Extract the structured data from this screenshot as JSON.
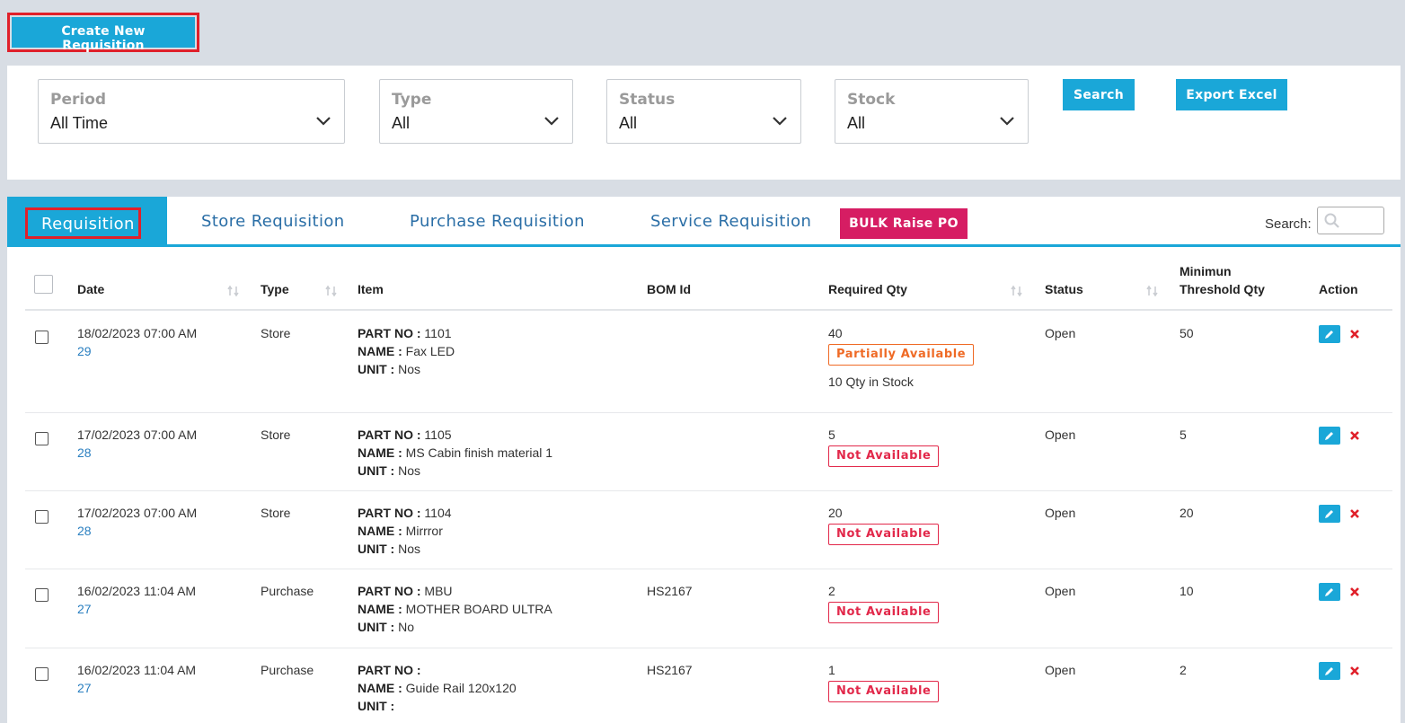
{
  "toolbar": {
    "create_label": "Create New Requisition"
  },
  "filters": [
    {
      "label": "Period",
      "value": "All Time"
    },
    {
      "label": "Type",
      "value": "All"
    },
    {
      "label": "Status",
      "value": "All"
    },
    {
      "label": "Stock",
      "value": "All"
    }
  ],
  "buttons": {
    "search": "Search",
    "export": "Export Excel",
    "bulk": "BULK Raise PO"
  },
  "tabs": {
    "active": "Requisition",
    "store": "Store Requisition",
    "purchase": "Purchase Requisition",
    "service": "Service Requisition"
  },
  "search": {
    "label": "Search:"
  },
  "columns": {
    "date": "Date",
    "type": "Type",
    "item": "Item",
    "bom": "BOM Id",
    "qty": "Required Qty",
    "status": "Status",
    "threshold_1": "Minimun",
    "threshold_2": "Threshold Qty",
    "action": "Action"
  },
  "labels": {
    "part": "PART NO :",
    "name": "NAME :",
    "unit": "UNIT :"
  },
  "rows": [
    {
      "date": "18/02/2023 07:00 AM",
      "id": "29",
      "type": "Store",
      "part": "1101",
      "name": "Fax LED",
      "unit": "Nos",
      "bom": "",
      "qty": "40",
      "badge": "Partially Available",
      "stock_note": "10 Qty in Stock",
      "status": "Open",
      "threshold": "50"
    },
    {
      "date": "17/02/2023 07:00 AM",
      "id": "28",
      "type": "Store",
      "part": "1105",
      "name": "MS Cabin finish material 1",
      "unit": "Nos",
      "bom": "",
      "qty": "5",
      "badge": "Not Available",
      "stock_note": "",
      "status": "Open",
      "threshold": "5"
    },
    {
      "date": "17/02/2023 07:00 AM",
      "id": "28",
      "type": "Store",
      "part": "1104",
      "name": "Mirrror",
      "unit": "Nos",
      "bom": "",
      "qty": "20",
      "badge": "Not Available",
      "stock_note": "",
      "status": "Open",
      "threshold": "20"
    },
    {
      "date": "16/02/2023 11:04 AM",
      "id": "27",
      "type": "Purchase",
      "part": "MBU",
      "name": "MOTHER BOARD ULTRA",
      "unit": "No",
      "bom": "HS2167",
      "qty": "2",
      "badge": "Not Available",
      "stock_note": "",
      "status": "Open",
      "threshold": "10"
    },
    {
      "date": "16/02/2023 11:04 AM",
      "id": "27",
      "type": "Purchase",
      "part": "",
      "name": "Guide Rail 120x120",
      "unit": "",
      "bom": "HS2167",
      "qty": "1",
      "badge": "Not Available",
      "stock_note": "",
      "status": "Open",
      "threshold": "2"
    }
  ],
  "colors": {
    "accent": "#1aa7d8",
    "bulk": "#d61d63",
    "partial": "#ef6a25",
    "not_available": "#e2284a",
    "highlight": "#e0202a"
  }
}
